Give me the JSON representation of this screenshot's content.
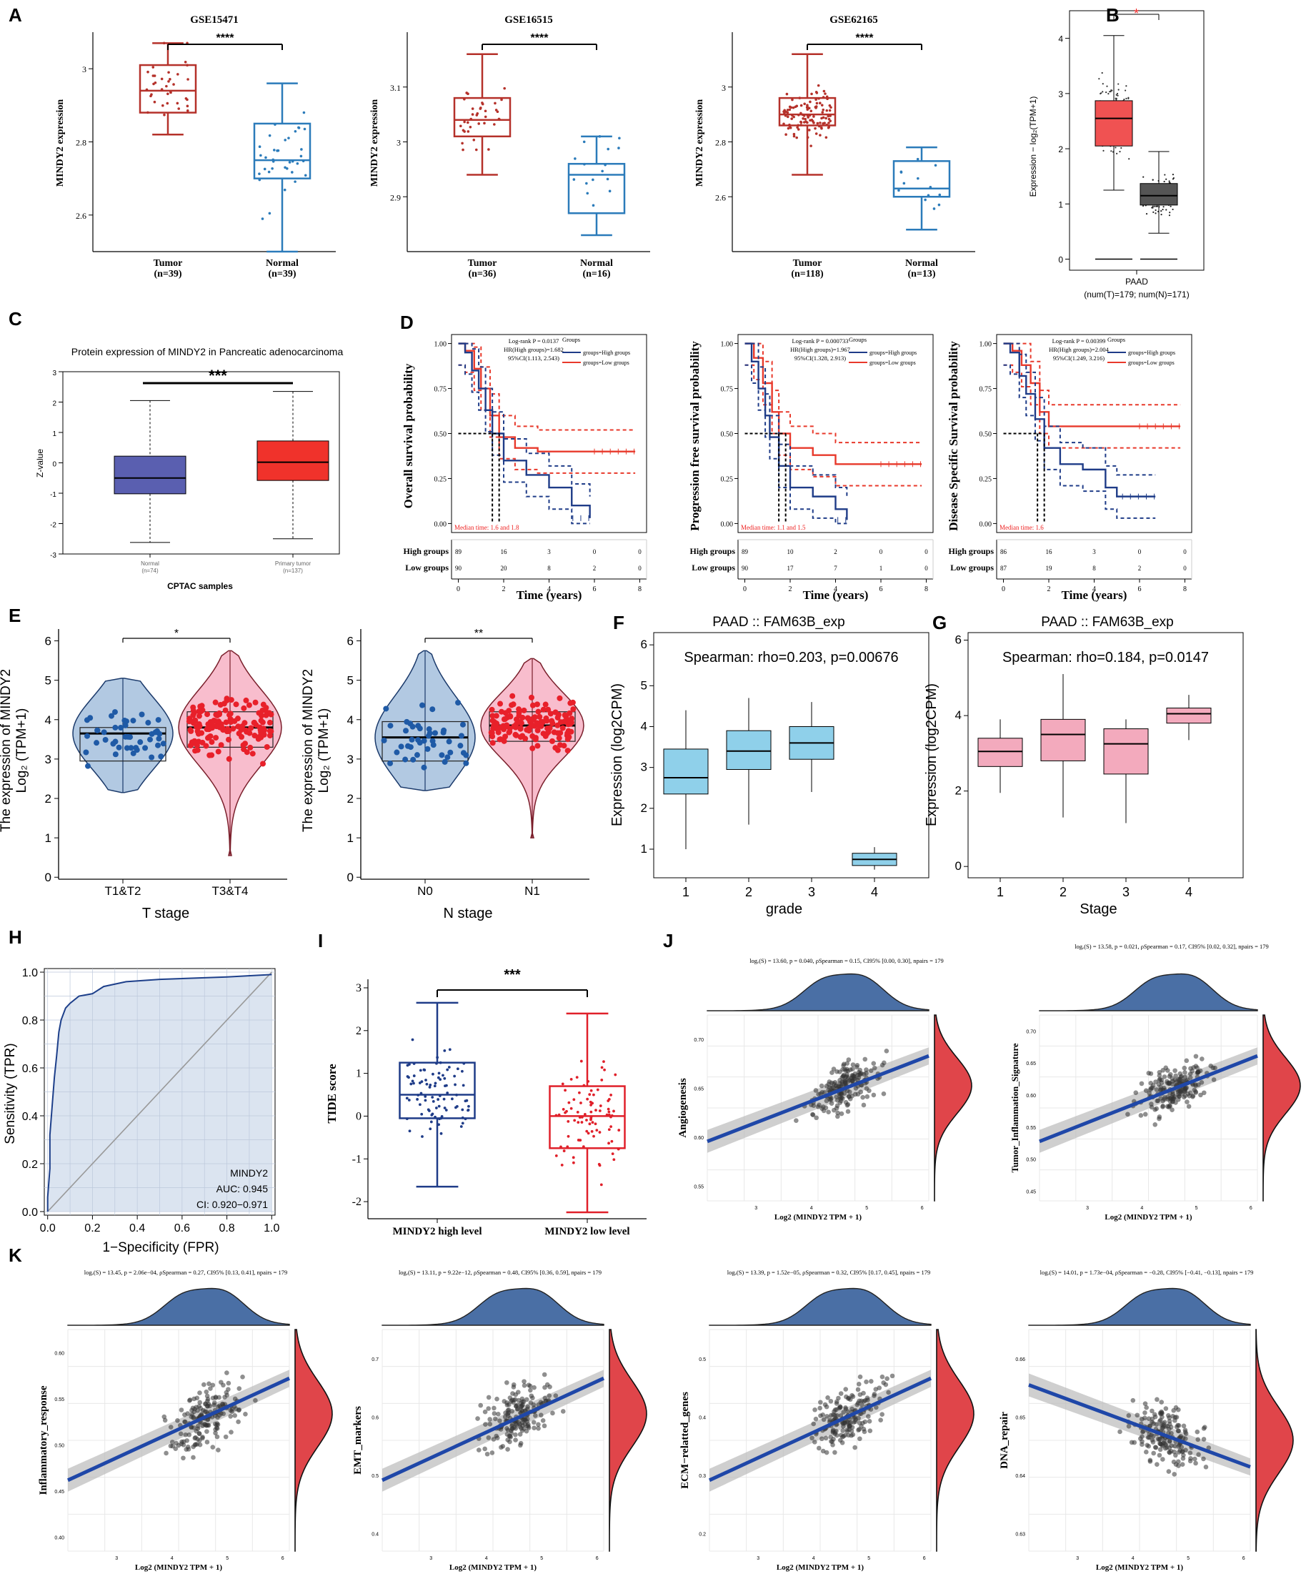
{
  "colors": {
    "red": "#b5312a",
    "blue": "#2b7bba",
    "navy": "#1f3c88",
    "bred": "#e8392b",
    "pink": "#f7b6c8",
    "lightblue": "#8fd0ea",
    "pinkbox": "#f3aabd",
    "grey": "#555555",
    "density_blue": "#4a6fa5",
    "density_red": "#e0454a",
    "gepia_red": "#f05252",
    "cptac_blue": "#5a5fb0",
    "cptac_red": "#f0322b"
  },
  "panels": {
    "A": "A",
    "B": "B",
    "C": "C",
    "D": "D",
    "E": "E",
    "F": "F",
    "G": "G",
    "H": "H",
    "I": "I",
    "J": "J",
    "K": "K"
  },
  "chart_data": [
    {
      "id": "A1",
      "type": "box",
      "title": "GSE15471",
      "ylabel": "MINDY2 expression",
      "signif": "****",
      "categories": [
        "Tumor\n(n=39)",
        "Normal\n(n=39)"
      ],
      "yticks": [
        2.6,
        2.8,
        3.0
      ],
      "ylim": [
        2.5,
        3.1
      ],
      "groups": [
        {
          "q1": 2.88,
          "median": 2.94,
          "q3": 3.01,
          "min": 2.82,
          "max": 3.07
        },
        {
          "q1": 2.7,
          "median": 2.75,
          "q3": 2.85,
          "min": 2.5,
          "max": 2.96
        }
      ],
      "labels": [
        [
          "Tumor",
          "(n=39)"
        ],
        [
          "Normal",
          "(n=39)"
        ]
      ]
    },
    {
      "id": "A2",
      "type": "box",
      "title": "GSE16515",
      "ylabel": "MINDY2 expression",
      "signif": "****",
      "yticks": [
        2.9,
        3.0,
        3.1
      ],
      "ylim": [
        2.8,
        3.2
      ],
      "groups": [
        {
          "q1": 3.01,
          "median": 3.04,
          "q3": 3.08,
          "min": 2.94,
          "max": 3.16
        },
        {
          "q1": 2.87,
          "median": 2.94,
          "q3": 2.96,
          "min": 2.83,
          "max": 3.01
        }
      ],
      "labels": [
        [
          "Tumor",
          "(n=36)"
        ],
        [
          "Normal",
          "(n=16)"
        ]
      ]
    },
    {
      "id": "A3",
      "type": "box",
      "title": "GSE62165",
      "ylabel": "MINDY2 expression",
      "signif": "****",
      "yticks": [
        2.6,
        2.8,
        3.0
      ],
      "ylim": [
        2.4,
        3.2
      ],
      "groups": [
        {
          "q1": 2.86,
          "median": 2.9,
          "q3": 2.96,
          "min": 2.68,
          "max": 3.12
        },
        {
          "q1": 2.6,
          "median": 2.63,
          "q3": 2.73,
          "min": 2.48,
          "max": 2.78
        }
      ],
      "labels": [
        [
          "Tumor",
          "(n=118)"
        ],
        [
          "Normal",
          "(n=13)"
        ]
      ]
    },
    {
      "id": "B",
      "type": "box",
      "title": "",
      "ylabel": "Expression − log₂(TPM+1)",
      "signif": "*",
      "yticks": [
        0,
        1,
        2,
        3,
        4
      ],
      "ylim": [
        -0.2,
        4.5
      ],
      "groups": [
        {
          "q1": 2.05,
          "median": 2.55,
          "q3": 2.87,
          "min": 1.25,
          "max": 4.05
        },
        {
          "q1": 0.98,
          "median": 1.15,
          "q3": 1.37,
          "min": 0.47,
          "max": 1.95
        }
      ],
      "xlabel": "PAAD",
      "xsub": "(num(T)=179; num(N)=171)"
    },
    {
      "id": "C",
      "type": "box",
      "title": "Protein expression of MINDY2 in Pancreatic adenocarcinoma",
      "ylabel": "Z-value",
      "signif": "***",
      "yticks": [
        -3,
        -2,
        -1,
        0,
        1,
        2,
        3
      ],
      "ylim": [
        -3,
        3
      ],
      "groups": [
        {
          "q1": -1.02,
          "median": -0.5,
          "q3": 0.22,
          "min": -2.62,
          "max": 2.05
        },
        {
          "q1": -0.58,
          "median": 0.02,
          "q3": 0.72,
          "min": -2.5,
          "max": 2.35
        }
      ],
      "labels": [
        [
          "Normal",
          "(n=74)"
        ],
        [
          "Primary tumor",
          "(n=137)"
        ]
      ],
      "xlabel": "CPTAC samples"
    },
    {
      "id": "D1",
      "type": "line",
      "ylabel": "Overall survival probability",
      "xlabel": "Time (years)",
      "stats": [
        "Log-rank P = 0.0137",
        "HR(High groups)=1.682",
        "95%CI(1.113, 2.543)"
      ],
      "median_text": "Median time: 1.6 and 1.8",
      "xticks": [
        0,
        2,
        4,
        6,
        8
      ],
      "yticks": [
        "0.00",
        "0.25",
        "0.50",
        "0.75",
        "1.00"
      ],
      "legend_title": "Groups",
      "legend": [
        "groups=High groups",
        "groups=Low groups"
      ],
      "high": [
        [
          0,
          1
        ],
        [
          0.3,
          0.95
        ],
        [
          0.6,
          0.85
        ],
        [
          0.9,
          0.75
        ],
        [
          1.2,
          0.63
        ],
        [
          1.5,
          0.5
        ],
        [
          2,
          0.35
        ],
        [
          3,
          0.27
        ],
        [
          4,
          0.2
        ],
        [
          5,
          0.1
        ],
        [
          5.8,
          0.03
        ]
      ],
      "low": [
        [
          0,
          1
        ],
        [
          0.3,
          0.96
        ],
        [
          0.7,
          0.86
        ],
        [
          1,
          0.75
        ],
        [
          1.4,
          0.6
        ],
        [
          1.8,
          0.48
        ],
        [
          2.5,
          0.42
        ],
        [
          3.5,
          0.4
        ],
        [
          7.8,
          0.4
        ]
      ],
      "risk": {
        "High groups": [
          89,
          16,
          3,
          0,
          0
        ],
        "Low groups": [
          90,
          20,
          8,
          2,
          0
        ]
      }
    },
    {
      "id": "D2",
      "type": "line",
      "ylabel": "Progression free survival probability",
      "xlabel": "Time (years)",
      "stats": [
        "Log-rank P = 0.000733",
        "HR(High groups)=1.967",
        "95%CI(1.328, 2.913)"
      ],
      "median_text": "Median time: 1.1 and 1.5",
      "xticks": [
        0,
        2,
        4,
        6,
        8
      ],
      "yticks": [
        "0.00",
        "0.25",
        "0.50",
        "0.75",
        "1.00"
      ],
      "legend_title": "Groups",
      "legend": [
        "groups=High groups",
        "groups=Low groups"
      ],
      "high": [
        [
          0,
          1
        ],
        [
          0.3,
          0.9
        ],
        [
          0.6,
          0.75
        ],
        [
          0.9,
          0.6
        ],
        [
          1.1,
          0.48
        ],
        [
          1.5,
          0.32
        ],
        [
          2,
          0.2
        ],
        [
          3,
          0.15
        ],
        [
          4,
          0.08
        ],
        [
          4.5,
          0.02
        ]
      ],
      "low": [
        [
          0,
          1
        ],
        [
          0.4,
          0.92
        ],
        [
          0.8,
          0.78
        ],
        [
          1.2,
          0.62
        ],
        [
          1.5,
          0.5
        ],
        [
          2,
          0.42
        ],
        [
          3,
          0.38
        ],
        [
          4,
          0.33
        ],
        [
          7.8,
          0.33
        ]
      ],
      "risk": {
        "High groups": [
          89,
          10,
          2,
          0,
          0
        ],
        "Low groups": [
          90,
          17,
          7,
          1,
          0
        ]
      }
    },
    {
      "id": "D3",
      "type": "line",
      "ylabel": "Disease Specific Survival probability",
      "xlabel": "Time (years)",
      "stats": [
        "Log-rank P = 0.00399",
        "HR(High groups)=2.004",
        "95%CI(1.249, 3.216)"
      ],
      "median_text": "Median time: 1.6",
      "xticks": [
        0,
        2,
        4,
        6,
        8
      ],
      "yticks": [
        "0.00",
        "0.25",
        "0.50",
        "0.75",
        "1.00"
      ],
      "legend_title": "Groups",
      "legend": [
        "groups=High groups",
        "groups=Low groups"
      ],
      "high": [
        [
          0,
          1
        ],
        [
          0.3,
          0.95
        ],
        [
          0.7,
          0.82
        ],
        [
          1,
          0.72
        ],
        [
          1.4,
          0.58
        ],
        [
          1.8,
          0.42
        ],
        [
          2.5,
          0.33
        ],
        [
          3.5,
          0.3
        ],
        [
          4.5,
          0.2
        ],
        [
          5,
          0.15
        ],
        [
          6.7,
          0.15
        ]
      ],
      "low": [
        [
          0,
          1
        ],
        [
          0.4,
          0.96
        ],
        [
          0.8,
          0.88
        ],
        [
          1.2,
          0.78
        ],
        [
          1.6,
          0.62
        ],
        [
          2,
          0.54
        ],
        [
          7.8,
          0.54
        ]
      ],
      "risk": {
        "High groups": [
          86,
          16,
          3,
          0,
          0
        ],
        "Low groups": [
          87,
          19,
          8,
          2,
          0
        ]
      }
    },
    {
      "id": "E1",
      "type": "violin",
      "ylabel": "The expression of MINDY2",
      "ylabel2": "Log₂ (TPM+1)",
      "xlabel": "T stage",
      "signif": "*",
      "categories": [
        "T1&T2",
        "T3&T4"
      ],
      "yticks": [
        0,
        1,
        2,
        3,
        4,
        5,
        6
      ],
      "ylim": [
        0,
        6
      ],
      "groups": [
        {
          "q1": 2.95,
          "median": 3.65,
          "q3": 3.8,
          "min": 2.15,
          "max": 5.05
        },
        {
          "q1": 3.3,
          "median": 3.8,
          "q3": 4.2,
          "min": 0.55,
          "max": 5.75
        }
      ]
    },
    {
      "id": "E2",
      "type": "violin",
      "ylabel": "The expression of MINDY2",
      "ylabel2": "Log₂ (TPM+1)",
      "xlabel": "N stage",
      "signif": "**",
      "categories": [
        "N0",
        "N1"
      ],
      "yticks": [
        0,
        1,
        2,
        3,
        4,
        5,
        6
      ],
      "ylim": [
        0,
        6
      ],
      "groups": [
        {
          "q1": 2.95,
          "median": 3.55,
          "q3": 3.95,
          "min": 2.2,
          "max": 5.75
        },
        {
          "q1": 3.45,
          "median": 3.85,
          "q3": 4.2,
          "min": 1.0,
          "max": 5.55
        }
      ]
    },
    {
      "id": "F",
      "type": "box",
      "title": "PAAD  ::  FAM63B_exp",
      "stat": "Spearman: rho=0.203, p=0.00676",
      "ylabel": "Expression (log2CPM)",
      "xlabel": "grade",
      "categories": [
        "1",
        "2",
        "3",
        "4"
      ],
      "yticks": [
        1,
        2,
        3,
        4,
        5,
        6
      ],
      "ylim": [
        0.3,
        6.3
      ],
      "groups": [
        {
          "q1": 2.35,
          "median": 2.75,
          "q3": 3.45,
          "min": 1.0,
          "max": 4.4
        },
        {
          "q1": 2.95,
          "median": 3.4,
          "q3": 3.9,
          "min": 1.6,
          "max": 4.7
        },
        {
          "q1": 3.2,
          "median": 3.6,
          "q3": 4.0,
          "min": 2.4,
          "max": 4.6
        },
        {
          "q1": 0.6,
          "median": 0.75,
          "q3": 0.9,
          "min": 0.5,
          "max": 1.05
        }
      ]
    },
    {
      "id": "G",
      "type": "box",
      "title": "PAAD  ::  FAM63B_exp",
      "stat": "Spearman: rho=0.184, p=0.0147",
      "ylabel": "Expression (log2CPM)",
      "xlabel": "Stage",
      "categories": [
        "1",
        "2",
        "3",
        "4"
      ],
      "yticks": [
        0,
        2,
        4,
        6
      ],
      "ylim": [
        -0.3,
        6.2
      ],
      "groups": [
        {
          "q1": 2.65,
          "median": 3.05,
          "q3": 3.4,
          "min": 1.95,
          "max": 3.9
        },
        {
          "q1": 2.8,
          "median": 3.5,
          "q3": 3.9,
          "min": 1.3,
          "max": 5.1
        },
        {
          "q1": 2.45,
          "median": 3.25,
          "q3": 3.65,
          "min": 1.15,
          "max": 3.9
        },
        {
          "q1": 3.8,
          "median": 4.05,
          "q3": 4.2,
          "min": 3.35,
          "max": 4.55
        }
      ]
    },
    {
      "id": "H",
      "type": "line",
      "ylabel": "Sensitivity (TPR)",
      "xlabel": "1−Specificity (FPR)",
      "xticks": [
        "0.0",
        "0.2",
        "0.4",
        "0.6",
        "0.8",
        "1.0"
      ],
      "yticks": [
        "0.0",
        "0.2",
        "0.4",
        "0.6",
        "0.8",
        "1.0"
      ],
      "legend": [
        "MINDY2",
        "AUC: 0.945",
        "CI: 0.920−0.971"
      ],
      "roc": [
        [
          0,
          0
        ],
        [
          0,
          0.06
        ],
        [
          0.01,
          0.18
        ],
        [
          0.01,
          0.32
        ],
        [
          0.02,
          0.44
        ],
        [
          0.03,
          0.56
        ],
        [
          0.04,
          0.65
        ],
        [
          0.05,
          0.75
        ],
        [
          0.06,
          0.8
        ],
        [
          0.08,
          0.85
        ],
        [
          0.1,
          0.87
        ],
        [
          0.14,
          0.9
        ],
        [
          0.2,
          0.91
        ],
        [
          0.25,
          0.94
        ],
        [
          0.35,
          0.96
        ],
        [
          0.5,
          0.97
        ],
        [
          0.8,
          0.98
        ],
        [
          1,
          0.99
        ]
      ]
    },
    {
      "id": "I",
      "type": "box",
      "ylabel": "TIDE score",
      "signif": "***",
      "categories": [
        "MINDY2 high level",
        "MINDY2 low level"
      ],
      "yticks": [
        -2,
        -1,
        0,
        1,
        2,
        3
      ],
      "ylim": [
        -2.4,
        3.2
      ],
      "groups": [
        {
          "q1": -0.05,
          "median": 0.5,
          "q3": 1.25,
          "min": -1.65,
          "max": 2.65
        },
        {
          "q1": -0.75,
          "median": 0.0,
          "q3": 0.7,
          "min": -2.25,
          "max": 2.4
        }
      ]
    },
    {
      "id": "J1",
      "type": "scatter",
      "ylabel": "Angiogenesis",
      "xlabel": "Log2 (MINDY2 TPM + 1)",
      "stat": "logₑ(S) = 13.60, p = 0.040, ρSpearman = 0.15, CI95% [0.00, 0.30], npairs = 179",
      "yticks": [
        "0.55",
        "0.60",
        "0.65",
        "0.70"
      ],
      "xticks": [
        "3",
        "4",
        "5",
        "6"
      ],
      "slope_dir": 1
    },
    {
      "id": "J2",
      "type": "scatter",
      "ylabel": "Tumor_Inflammation_Signature",
      "xlabel": "Log2 (MINDY2 TPM + 1)",
      "stat": "logₑ(S) = 13.58, p = 0.021, ρSpearman = 0.17, CI95% [0.02, 0.32], npairs = 179",
      "yticks": [
        "0.45",
        "0.50",
        "0.55",
        "0.60",
        "0.65",
        "0.70"
      ],
      "xticks": [
        "3",
        "4",
        "5",
        "6"
      ],
      "slope_dir": 1
    },
    {
      "id": "K1",
      "type": "scatter",
      "ylabel": "Inflammatory_response",
      "xlabel": "Log2 (MINDY2 TPM + 1)",
      "stat": "logₑ(S) = 13.45, p = 2.06e−04, ρSpearman = 0.27, CI95% [0.13, 0.41], npairs = 179",
      "yticks": [
        "0.40",
        "0.45",
        "0.50",
        "0.55",
        "0.60"
      ],
      "xticks": [
        "3",
        "4",
        "5",
        "6"
      ],
      "slope_dir": 1
    },
    {
      "id": "K2",
      "type": "scatter",
      "ylabel": "EMT_markers",
      "xlabel": "Log2 (MINDY2 TPM + 1)",
      "stat": "logₑ(S) = 13.11, p = 9.22e−12, ρSpearman = 0.48, CI95% [0.36, 0.59], npairs = 179",
      "yticks": [
        "0.4",
        "0.5",
        "0.6",
        "0.7"
      ],
      "xticks": [
        "3",
        "4",
        "5",
        "6"
      ],
      "slope_dir": 1
    },
    {
      "id": "K3",
      "type": "scatter",
      "ylabel": "ECM−relatted_genes",
      "xlabel": "Log2 (MINDY2 TPM + 1)",
      "stat": "logₑ(S) = 13.39, p = 1.52e−05, ρSpearman = 0.32, CI95% [0.17, 0.45], npairs = 179",
      "yticks": [
        "0.2",
        "0.3",
        "0.4",
        "0.5"
      ],
      "xticks": [
        "3",
        "4",
        "5",
        "6"
      ],
      "slope_dir": 1
    },
    {
      "id": "K4",
      "type": "scatter",
      "ylabel": "DNA_repair",
      "xlabel": "Log2 (MINDY2 TPM + 1)",
      "stat": "logₑ(S) = 14.01, p = 1.73e−04, ρSpearman = −0.28, CI95% [−0.41, −0.13], npairs = 179",
      "yticks": [
        "0.63",
        "0.64",
        "0.65",
        "0.66"
      ],
      "xticks": [
        "3",
        "4",
        "5",
        "6"
      ],
      "slope_dir": -1
    }
  ]
}
